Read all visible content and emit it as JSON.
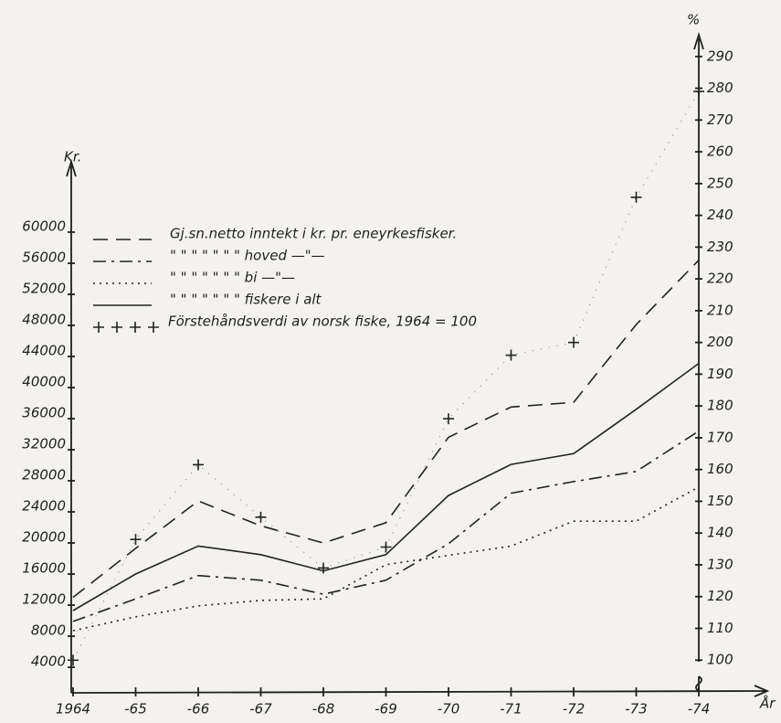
{
  "chart_data": {
    "type": "line",
    "y_label": "Kr.",
    "y2_label": "%",
    "x_label": "År",
    "categories": [
      "1964",
      "-65",
      "-66",
      "-67",
      "-68",
      "-69",
      "-70",
      "-71",
      "-72",
      "-73",
      "-74"
    ],
    "ylim": [
      0,
      70000
    ],
    "yticks": [
      4000,
      8000,
      12000,
      16000,
      20000,
      24000,
      28000,
      32000,
      36000,
      40000,
      44000,
      48000,
      52000,
      56000,
      60000
    ],
    "y2lim": [
      90,
      298
    ],
    "y2ticks": [
      100,
      110,
      120,
      130,
      140,
      150,
      160,
      170,
      180,
      190,
      200,
      210,
      220,
      230,
      240,
      250,
      260,
      270,
      280,
      290
    ],
    "series": [
      {
        "name": "Gj.sn.netto inntekt i kr. pr. eneyrkesfisker.",
        "color": "#222222",
        "style": "dashed",
        "values": [
          13000,
          19300,
          25400,
          22200,
          20000,
          22600,
          33600,
          37500,
          38100,
          48100,
          56400
        ]
      },
      {
        "name": "\" \" \"   \"   \" \" \" hoved —\"—",
        "color": "#222222",
        "style": "dashdot",
        "values": [
          9900,
          12800,
          15800,
          15200,
          13400,
          15200,
          19900,
          26400,
          27900,
          29200,
          34400
        ]
      },
      {
        "name": "\" \" \"   \"   \" \" \" bi —\"—",
        "color": "#222222",
        "style": "dotted",
        "values": [
          8700,
          10500,
          11900,
          12600,
          12800,
          17200,
          18400,
          19600,
          22800,
          22800,
          27200
        ]
      },
      {
        "name": "\" \" \"   \"   \" \" \" fiskere i alt",
        "color": "#222222",
        "style": "solid",
        "values": [
          11300,
          16000,
          19600,
          18500,
          16400,
          18500,
          26100,
          30100,
          31500,
          37200,
          43100
        ]
      },
      {
        "name": "Förstehåndsverdi av norsk fiske, 1964 = 100",
        "color": "#222222",
        "style": "plus",
        "axis": "y2",
        "values": [
          100,
          138,
          161.5,
          145,
          129,
          135.6,
          176,
          196,
          200,
          245.7,
          279
        ]
      }
    ]
  }
}
